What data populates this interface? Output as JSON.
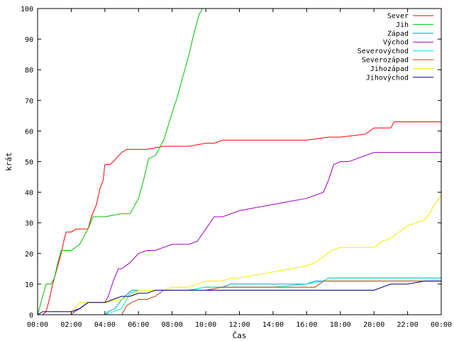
{
  "chart_data": {
    "type": "line",
    "title": "",
    "xlabel": "Čas",
    "ylabel": "krát",
    "xlim": [
      0,
      24
    ],
    "ylim": [
      0,
      100
    ],
    "x_ticks": [
      "00:00",
      "02:00",
      "04:00",
      "06:00",
      "08:00",
      "10:00",
      "12:00",
      "14:00",
      "16:00",
      "18:00",
      "20:00",
      "22:00",
      "00:00"
    ],
    "y_ticks": [
      0,
      10,
      20,
      30,
      40,
      50,
      60,
      70,
      80,
      90,
      100
    ],
    "grid": false,
    "legend_position": "top-right",
    "series": [
      {
        "name": "Sever",
        "color": "#ff0000",
        "x": [
          0,
          0.3,
          0.5,
          0.7,
          0.9,
          1.0,
          1.2,
          1.4,
          1.6,
          1.7,
          1.8,
          1.9,
          2.0,
          2.3,
          2.5,
          3.0,
          3.2,
          3.5,
          3.7,
          3.9,
          4.0,
          4.3,
          4.5,
          5.0,
          5.3,
          5.5,
          5.7,
          6.0,
          6.5,
          7.5,
          8.0,
          9.0,
          10.0,
          10.5,
          11.0,
          12.0,
          14.0,
          16.0,
          17.3,
          18.0,
          19.5,
          20.0,
          21.0,
          21.2,
          22.0,
          24.0
        ],
        "y": [
          0,
          0,
          1,
          5,
          10,
          12,
          16,
          20,
          25,
          27,
          27,
          27,
          27,
          28,
          28,
          28,
          32,
          36,
          41,
          44,
          49,
          49,
          50,
          53,
          54,
          54,
          54,
          54,
          54,
          55,
          55,
          55,
          56,
          56,
          57,
          57,
          57,
          57,
          58,
          58,
          59,
          61,
          61,
          63,
          63,
          63
        ]
      },
      {
        "name": "Jih",
        "color": "#00c000",
        "x": [
          0,
          0.1,
          0.3,
          0.5,
          0.8,
          1.0,
          1.2,
          1.4,
          1.6,
          2.0,
          2.5,
          3.0,
          3.3,
          4.0,
          5.0,
          5.5,
          6.0,
          6.3,
          6.6,
          7.0,
          7.5,
          8.0,
          8.3,
          8.6,
          9.0,
          9.3,
          9.6,
          9.8
        ],
        "y": [
          0,
          2,
          6,
          10,
          10,
          12,
          17,
          21,
          21,
          21,
          23,
          28,
          32,
          32,
          33,
          33,
          38,
          44,
          51,
          52,
          57,
          66,
          71,
          77,
          85,
          92,
          98,
          100
        ]
      },
      {
        "name": "Západ",
        "color": "#00a0c0",
        "x": [
          0,
          4.0,
          4.2,
          4.6,
          5.0,
          5.4,
          5.6,
          6.0,
          7.0,
          8.0,
          9.0,
          10.0,
          11.0,
          11.5,
          12.0,
          14.0,
          16.0,
          16.5,
          17.0,
          17.3,
          18.0,
          20.0,
          22.0,
          24.0
        ],
        "y": [
          0,
          0,
          1,
          2,
          5,
          7,
          8,
          8,
          8,
          8,
          8,
          9,
          9,
          10,
          10,
          10,
          10,
          11,
          11,
          12,
          12,
          12,
          12,
          12
        ]
      },
      {
        "name": "Východ",
        "color": "#a000c0",
        "x": [
          0,
          2.0,
          2.2,
          2.5,
          3.0,
          3.5,
          4.0,
          4.2,
          4.5,
          4.8,
          5.0,
          5.5,
          6.0,
          6.5,
          7.0,
          7.5,
          8.0,
          8.5,
          9.0,
          9.5,
          10.0,
          10.5,
          11.0,
          12.0,
          13.0,
          14.0,
          15.0,
          16.0,
          16.5,
          17.0,
          17.3,
          17.6,
          18.0,
          18.5,
          19.0,
          19.5,
          20.0,
          21.0,
          22.0,
          23.0,
          24.0
        ],
        "y": [
          0,
          0,
          1,
          2,
          4,
          4,
          4,
          6,
          11,
          15,
          15,
          17,
          20,
          21,
          21,
          22,
          23,
          23,
          23,
          24,
          28,
          32,
          32,
          34,
          35,
          36,
          37,
          38,
          39,
          40,
          44,
          49,
          50,
          50,
          51,
          52,
          53,
          53,
          53,
          53,
          53
        ]
      },
      {
        "name": "Severovýchod",
        "color": "#00e0e0",
        "x": [
          0,
          4.0,
          4.5,
          5.0,
          5.5,
          6.0,
          7.0,
          8.0,
          9.0,
          10.0,
          11.0,
          12.0,
          14.0,
          16.0,
          17.0,
          17.3,
          18.0,
          20.0,
          22.0,
          24.0
        ],
        "y": [
          0,
          0,
          1,
          2,
          7,
          8,
          8,
          8,
          8,
          9,
          9,
          9,
          9,
          10,
          11,
          12,
          12,
          12,
          12,
          12
        ]
      },
      {
        "name": "Severozápad",
        "color": "#b04000",
        "x": [
          0,
          5.0,
          5.3,
          5.6,
          6.0,
          6.5,
          7.0,
          7.5,
          8.0,
          9.0,
          10.0,
          11.0,
          12.0,
          14.0,
          16.0,
          16.5,
          17.0,
          18.0,
          20.0,
          22.0,
          24.0
        ],
        "y": [
          0,
          0,
          3,
          4,
          5,
          5,
          6,
          8,
          8,
          8,
          8,
          9,
          9,
          9,
          9,
          9,
          11,
          11,
          11,
          11,
          11
        ]
      },
      {
        "name": "Jihozápad",
        "color": "#f0f000",
        "x": [
          0,
          2.0,
          2.2,
          2.5,
          3.0,
          3.5,
          4.0,
          5.0,
          5.5,
          6.0,
          6.5,
          7.0,
          7.5,
          8.0,
          9.0,
          9.5,
          10.0,
          11.0,
          11.5,
          12.0,
          13.0,
          14.0,
          15.0,
          16.0,
          16.5,
          17.0,
          17.5,
          18.0,
          19.0,
          20.0,
          20.5,
          21.0,
          21.5,
          22.0,
          22.5,
          23.0,
          23.3,
          23.6,
          24.0
        ],
        "y": [
          0,
          0,
          2,
          4,
          4,
          4,
          4,
          5,
          6,
          8,
          8,
          8,
          8,
          9,
          9,
          10,
          11,
          11,
          12,
          12,
          13,
          14,
          15,
          16,
          17,
          19,
          21,
          22,
          22,
          22,
          24,
          25,
          27,
          29,
          30,
          31,
          33,
          36,
          39
        ]
      },
      {
        "name": "Jihovýchod",
        "color": "#000080",
        "x": [
          0,
          0.3,
          0.5,
          1.0,
          1.5,
          2.0,
          2.5,
          3.0,
          3.5,
          4.0,
          4.5,
          5.0,
          5.5,
          6.0,
          6.5,
          7.0,
          7.5,
          8.0,
          9.0,
          10.0,
          11.0,
          12.0,
          14.0,
          16.0,
          18.0,
          20.0,
          21.0,
          22.0,
          23.0,
          24.0
        ],
        "y": [
          0,
          1,
          1,
          1,
          1,
          1,
          2,
          4,
          4,
          4,
          5,
          6,
          6,
          7,
          7,
          8,
          8,
          8,
          8,
          8,
          8,
          8,
          8,
          8,
          8,
          8,
          10,
          10,
          11,
          11
        ]
      }
    ]
  }
}
